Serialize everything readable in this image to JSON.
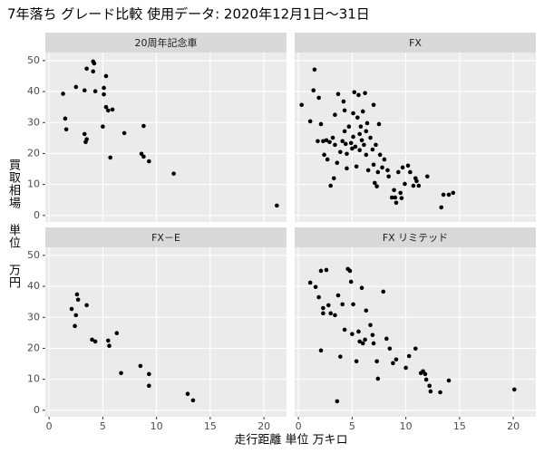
{
  "chart_data": {
    "type": "scatter",
    "title": "7年落ち グレード比較 使用データ: 2020年12月1日～31日",
    "x_label": "走行距離 単位 万キロ",
    "y_label": "買取相場 単位 万円",
    "xlim": [
      -0.35,
      22.1
    ],
    "ylim": [
      -2.1,
      52.6
    ],
    "xticks": [
      0,
      5,
      10,
      15,
      20
    ],
    "yticks": [
      0,
      10,
      20,
      30,
      40,
      50
    ],
    "grid": true,
    "point_color": "#000000",
    "facets": [
      {
        "name": "20周年記念車",
        "x": [
          1.3,
          1.5,
          1.6,
          2.5,
          3.3,
          3.3,
          3.4,
          3.5,
          3.5,
          4.1,
          4.2,
          4.1,
          4.3,
          5.0,
          5.3,
          5.1,
          5.1,
          5.3,
          5.5,
          5.9,
          5.7,
          7.0,
          8.8,
          8.6,
          8.8,
          9.3,
          11.6,
          21.2
        ],
        "y": [
          39.3,
          31.3,
          27.8,
          41.5,
          40.4,
          26.3,
          23.7,
          24.6,
          47.4,
          49.7,
          49.1,
          46.5,
          40.1,
          28.7,
          45.0,
          41.2,
          39.1,
          35.0,
          33.9,
          34.2,
          18.7,
          26.6,
          28.9,
          19.9,
          19.0,
          17.5,
          13.5,
          3.2
        ]
      },
      {
        "name": "FX",
        "x": [
          0.3,
          1.1,
          1.5,
          1.4,
          1.9,
          2.1,
          1.8,
          2.3,
          2.4,
          2.7,
          2.6,
          2.9,
          3.2,
          3.4,
          3.6,
          3.0,
          3.3,
          3.4,
          3.7,
          3.9,
          4.1,
          4.2,
          4.3,
          4.3,
          4.4,
          4.5,
          4.5,
          4.7,
          4.9,
          5.0,
          5.1,
          5.1,
          5.2,
          5.3,
          5.4,
          5.5,
          5.6,
          5.7,
          5.7,
          5.8,
          5.9,
          6.0,
          6.1,
          6.2,
          6.3,
          6.3,
          6.4,
          6.5,
          6.7,
          6.9,
          7.0,
          7.0,
          7.2,
          7.4,
          7.5,
          7.6,
          7.1,
          7.3,
          7.8,
          8.0,
          8.3,
          8.4,
          8.7,
          8.9,
          9.0,
          9.1,
          9.3,
          9.5,
          9.6,
          9.7,
          9.9,
          10.2,
          10.4,
          10.7,
          10.9,
          11.0,
          11.2,
          12.0,
          13.3,
          13.5,
          14.0,
          14.4
        ],
        "y": [
          35.7,
          30.4,
          47.1,
          40.4,
          38.0,
          29.5,
          24.0,
          24.0,
          19.6,
          18.1,
          24.3,
          23.7,
          25.1,
          22.8,
          17.0,
          9.6,
          12.0,
          32.5,
          39.2,
          20.5,
          24.0,
          36.8,
          33.9,
          27.2,
          23.1,
          19.9,
          15.2,
          28.7,
          23.4,
          21.6,
          33.0,
          25.4,
          39.8,
          22.2,
          15.8,
          31.6,
          38.9,
          26.3,
          21.1,
          28.7,
          24.3,
          33.6,
          22.8,
          39.5,
          27.2,
          19.6,
          29.8,
          14.6,
          25.1,
          21.3,
          35.7,
          16.4,
          22.8,
          14.0,
          29.5,
          19.6,
          10.5,
          9.4,
          15.5,
          18.1,
          14.6,
          12.6,
          5.8,
          8.2,
          5.8,
          4.1,
          14.0,
          7.3,
          5.6,
          15.5,
          10.2,
          16.1,
          14.0,
          9.6,
          12.0,
          11.1,
          9.6,
          12.6,
          2.6,
          6.7,
          6.7,
          7.3
        ]
      },
      {
        "name": "FX－E",
        "x": [
          2.1,
          2.4,
          2.5,
          2.6,
          2.7,
          3.5,
          4.0,
          4.3,
          5.5,
          5.6,
          6.3,
          6.7,
          8.5,
          9.3,
          9.3,
          12.9,
          13.4
        ],
        "y": [
          32.7,
          27.2,
          30.7,
          37.4,
          35.7,
          33.9,
          22.8,
          22.2,
          22.5,
          20.8,
          24.9,
          12.0,
          14.3,
          11.7,
          7.9,
          5.3,
          3.2
        ]
      },
      {
        "name": "FX リミテッド",
        "x": [
          1.1,
          1.6,
          1.9,
          2.1,
          2.3,
          2.3,
          2.1,
          2.6,
          2.8,
          3.0,
          3.4,
          3.7,
          3.6,
          3.9,
          4.1,
          4.3,
          4.6,
          4.8,
          4.9,
          5.0,
          5.1,
          5.4,
          5.6,
          5.7,
          5.9,
          6.0,
          6.2,
          6.3,
          6.7,
          6.9,
          7.0,
          7.3,
          7.4,
          7.9,
          8.2,
          8.5,
          8.8,
          9.1,
          10.0,
          10.3,
          10.9,
          11.4,
          11.6,
          11.8,
          11.9,
          12.2,
          12.3,
          13.2,
          14.0,
          20.1
        ],
        "y": [
          41.2,
          39.8,
          36.5,
          45.0,
          33.0,
          31.3,
          19.3,
          45.3,
          33.9,
          31.3,
          30.7,
          37.1,
          2.9,
          17.3,
          34.2,
          26.0,
          45.6,
          45.0,
          41.5,
          24.6,
          34.2,
          15.8,
          25.4,
          22.2,
          39.5,
          21.6,
          22.8,
          32.2,
          27.5,
          24.3,
          21.6,
          15.8,
          10.2,
          38.3,
          23.1,
          19.9,
          15.2,
          16.4,
          13.7,
          17.5,
          19.9,
          12.0,
          12.6,
          11.7,
          9.9,
          7.9,
          6.1,
          5.8,
          9.6,
          6.7
        ]
      }
    ]
  }
}
